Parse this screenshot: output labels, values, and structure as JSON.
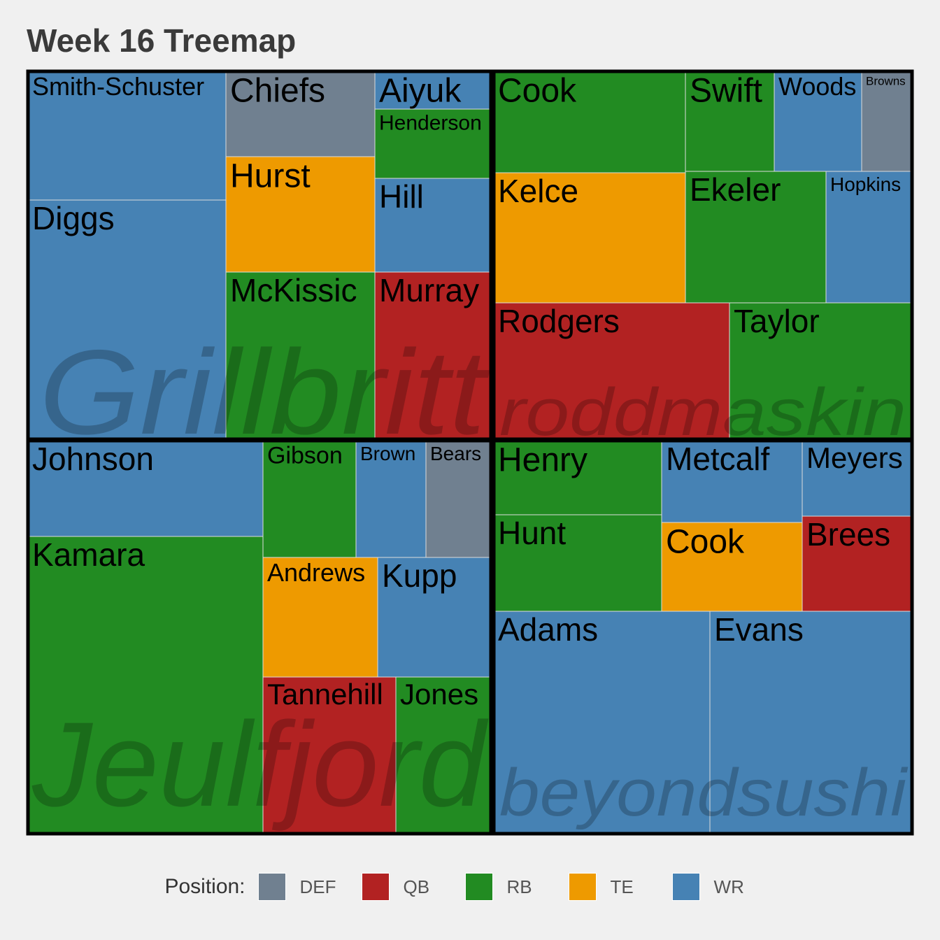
{
  "colors": {
    "DEF": "#708090",
    "QB": "#b22222",
    "RB": "#228b22",
    "TE": "#ee9a00",
    "WR": "#4682b4"
  },
  "chart_data": {
    "type": "treemap",
    "title": "Week 16 Treemap",
    "legend": {
      "title": "Position:",
      "placement": "bottom",
      "items": [
        "DEF",
        "QB",
        "RB",
        "TE",
        "WR"
      ]
    },
    "groups": [
      {
        "name": "Grillbritt",
        "players": [
          {
            "name": "Smith-Schuster",
            "position": "WR"
          },
          {
            "name": "Diggs",
            "position": "WR"
          },
          {
            "name": "Chiefs",
            "position": "DEF"
          },
          {
            "name": "Hurst",
            "position": "TE"
          },
          {
            "name": "McKissic",
            "position": "RB"
          },
          {
            "name": "Aiyuk",
            "position": "WR"
          },
          {
            "name": "Henderson",
            "position": "RB"
          },
          {
            "name": "Hill",
            "position": "WR"
          },
          {
            "name": "Murray",
            "position": "QB"
          }
        ]
      },
      {
        "name": "roddmaskin",
        "players": [
          {
            "name": "Cook",
            "position": "RB"
          },
          {
            "name": "Swift",
            "position": "RB"
          },
          {
            "name": "Woods",
            "position": "WR"
          },
          {
            "name": "Browns",
            "position": "DEF"
          },
          {
            "name": "Kelce",
            "position": "TE"
          },
          {
            "name": "Ekeler",
            "position": "RB"
          },
          {
            "name": "Hopkins",
            "position": "WR"
          },
          {
            "name": "Rodgers",
            "position": "QB"
          },
          {
            "name": "Taylor",
            "position": "RB"
          }
        ]
      },
      {
        "name": "Jeulfjord",
        "players": [
          {
            "name": "Johnson",
            "position": "WR"
          },
          {
            "name": "Kamara",
            "position": "RB"
          },
          {
            "name": "Gibson",
            "position": "RB"
          },
          {
            "name": "Brown",
            "position": "WR"
          },
          {
            "name": "Bears",
            "position": "DEF"
          },
          {
            "name": "Andrews",
            "position": "TE"
          },
          {
            "name": "Kupp",
            "position": "WR"
          },
          {
            "name": "Tannehill",
            "position": "QB"
          },
          {
            "name": "Jones",
            "position": "RB"
          }
        ]
      },
      {
        "name": "beyondsushi",
        "players": [
          {
            "name": "Henry",
            "position": "RB"
          },
          {
            "name": "Metcalf",
            "position": "WR"
          },
          {
            "name": "Meyers",
            "position": "WR"
          },
          {
            "name": "Hunt",
            "position": "RB"
          },
          {
            "name": "Cook",
            "position": "TE"
          },
          {
            "name": "Brees",
            "position": "QB"
          },
          {
            "name": "Adams",
            "position": "WR"
          },
          {
            "name": "Evans",
            "position": "WR"
          }
        ]
      }
    ]
  }
}
